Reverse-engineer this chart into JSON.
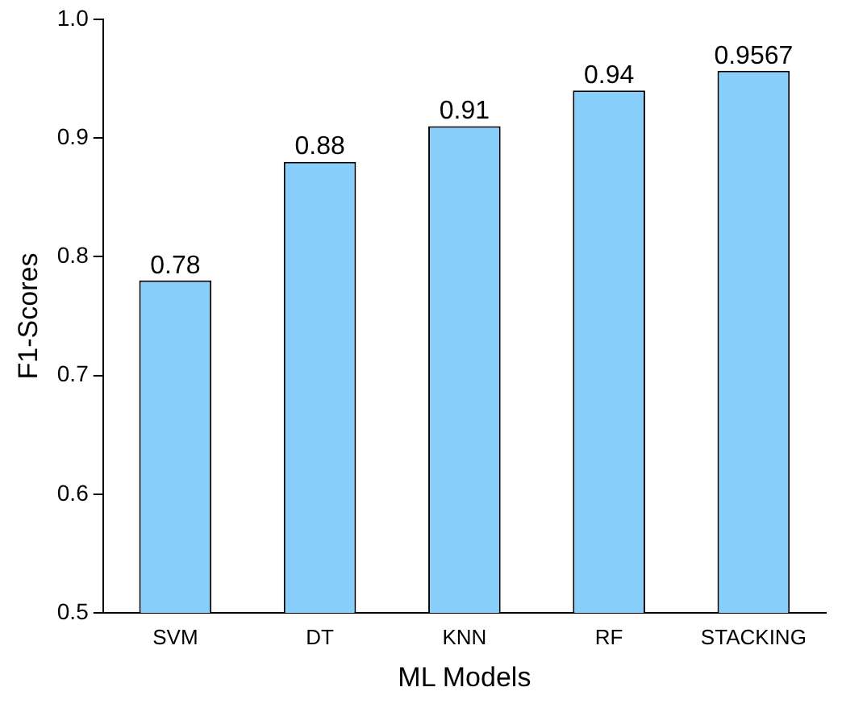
{
  "chart_data": {
    "type": "bar",
    "xlabel": "ML Models",
    "ylabel": "F1-Scores",
    "categories": [
      "SVM",
      "DT",
      "KNN",
      "RF",
      "STACKING"
    ],
    "values": [
      0.78,
      0.88,
      0.91,
      0.94,
      0.9567
    ],
    "color": "#87cefa",
    "ylim": [
      0.5,
      1.0
    ],
    "yticks": [
      0.5,
      0.6,
      0.7,
      0.8,
      0.9,
      {
        "value": 1,
        "label": "1.0"
      }
    ],
    "grid": false,
    "legend": false,
    "data_labels": true
  }
}
